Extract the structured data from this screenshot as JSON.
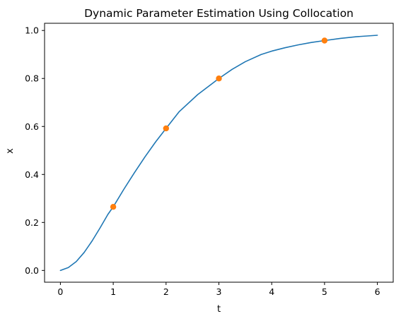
{
  "chart_data": {
    "type": "line",
    "title": "Dynamic Parameter Estimation Using Collocation",
    "xlabel": "t",
    "ylabel": "x",
    "xlim": [
      -0.3,
      6.3
    ],
    "ylim": [
      -0.049,
      1.03
    ],
    "xticks": [
      0,
      1,
      2,
      3,
      4,
      5,
      6
    ],
    "xtick_labels": [
      "0",
      "1",
      "2",
      "3",
      "4",
      "5",
      "6"
    ],
    "yticks": [
      0.0,
      0.2,
      0.4,
      0.6,
      0.8,
      1.0
    ],
    "ytick_labels": [
      "0.0",
      "0.2",
      "0.4",
      "0.6",
      "0.8",
      "1.0"
    ],
    "grid": false,
    "series": [
      {
        "kind": "line",
        "color": "#1f77b4",
        "x": [
          0,
          0.15,
          0.3,
          0.45,
          0.6,
          0.75,
          0.9,
          1.0,
          1.2,
          1.4,
          1.6,
          1.8,
          2.0,
          2.25,
          2.6,
          3.0,
          3.25,
          3.5,
          3.8,
          4.0,
          4.25,
          4.5,
          4.75,
          5.0,
          5.3,
          5.6,
          6.0
        ],
        "y": [
          0.0,
          0.012,
          0.037,
          0.075,
          0.123,
          0.177,
          0.234,
          0.265,
          0.338,
          0.407,
          0.473,
          0.535,
          0.592,
          0.662,
          0.733,
          0.8,
          0.838,
          0.87,
          0.9,
          0.914,
          0.928,
          0.94,
          0.95,
          0.958,
          0.967,
          0.974,
          0.98
        ]
      },
      {
        "kind": "scatter",
        "color": "#ff7f0e",
        "x": [
          1,
          2,
          3,
          5
        ],
        "y": [
          0.265,
          0.592,
          0.8,
          0.958
        ]
      }
    ]
  }
}
